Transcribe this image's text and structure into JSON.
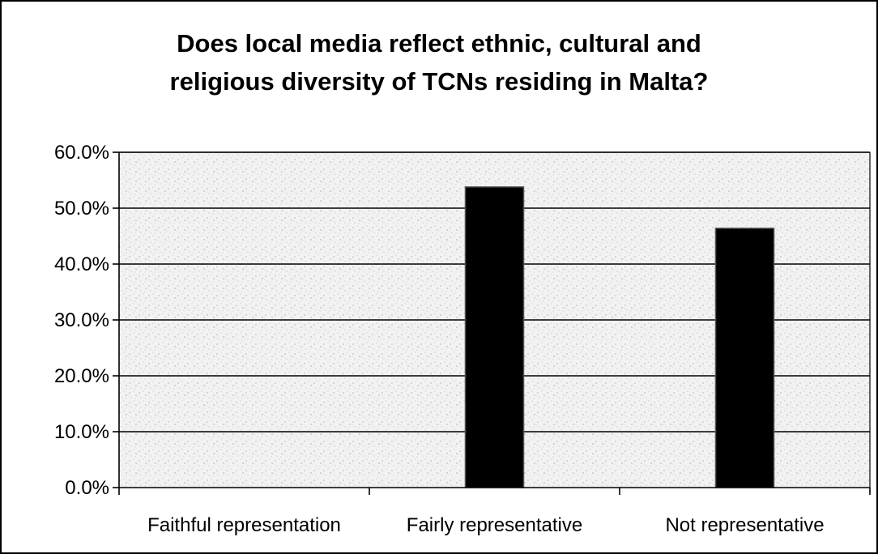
{
  "chart_data": {
    "type": "bar",
    "title_lines": [
      "Does local media reflect ethnic, cultural and",
      "religious diversity of TCNs residing in Malta?"
    ],
    "categories": [
      "Faithful representation",
      "Fairly representative",
      "Not representative"
    ],
    "values": [
      0.0,
      53.8,
      46.4
    ],
    "value_unit": "%",
    "ylim": [
      0,
      60
    ],
    "yticks": [
      "0.0%",
      "10.0%",
      "20.0%",
      "30.0%",
      "40.0%",
      "50.0%",
      "60.0%"
    ],
    "ytick_values": [
      0,
      10,
      20,
      30,
      40,
      50,
      60
    ],
    "grid": true,
    "legend": "none",
    "colors": {
      "bar": "#000000",
      "plot_background": "#d9d9d9",
      "gridline": "#000000"
    }
  }
}
